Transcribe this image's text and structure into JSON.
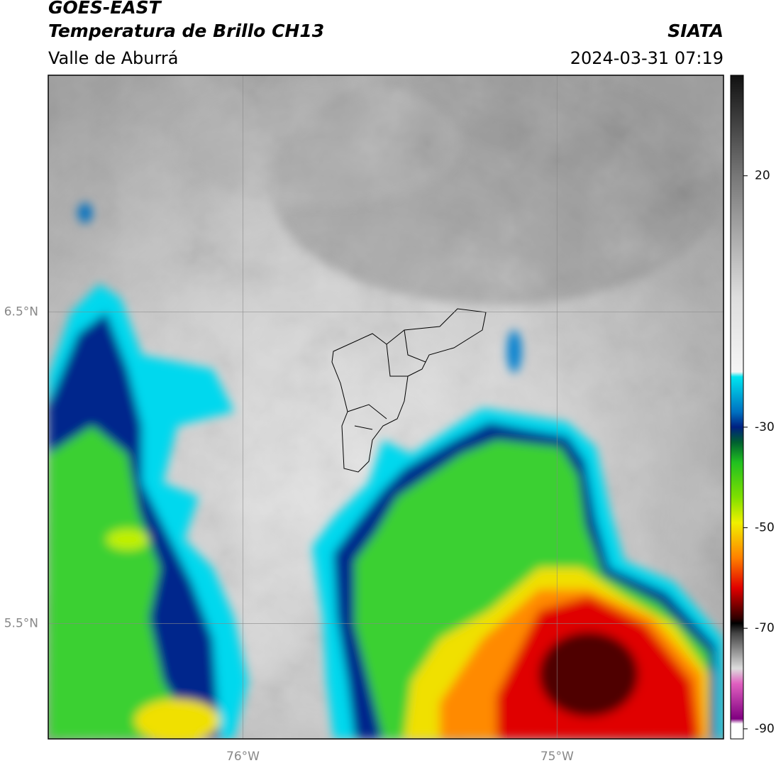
{
  "header": {
    "title": "GOES-EAST",
    "subtitle": "Temperatura de Brillo CH13",
    "region": "Valle de Aburrá",
    "source": "SIATA",
    "datetime": "2024-03-31 07:19"
  },
  "map": {
    "xlim": [
      -76.62,
      -74.47
    ],
    "ylim": [
      5.13,
      7.26
    ],
    "xticks": [
      {
        "value": -76,
        "label": "76°W"
      },
      {
        "value": -75,
        "label": "75°W"
      }
    ],
    "yticks": [
      {
        "value": 6.5,
        "label": "6.5°N"
      },
      {
        "value": 5.5,
        "label": "5.5°N"
      }
    ],
    "grid": true
  },
  "colorbar": {
    "clim": [
      -92,
      40
    ],
    "ticks": [
      20,
      -30,
      -50,
      -70,
      -90
    ],
    "colormap": [
      {
        "value": 40,
        "color": "#111111"
      },
      {
        "value": 20,
        "color": "#777777"
      },
      {
        "value": -4,
        "color": "#dddddd"
      },
      {
        "value": -19,
        "color": "#f5f5f5"
      },
      {
        "value": -20,
        "color": "#00e5f0"
      },
      {
        "value": -27,
        "color": "#0070c0"
      },
      {
        "value": -30,
        "color": "#002080"
      },
      {
        "value": -33,
        "color": "#006030"
      },
      {
        "value": -37,
        "color": "#20c020"
      },
      {
        "value": -44,
        "color": "#80e000"
      },
      {
        "value": -49,
        "color": "#f0f000"
      },
      {
        "value": -56,
        "color": "#ff8000"
      },
      {
        "value": -62,
        "color": "#e00000"
      },
      {
        "value": -68,
        "color": "#300000"
      },
      {
        "value": -69,
        "color": "#000000"
      },
      {
        "value": -71,
        "color": "#444444"
      },
      {
        "value": -78,
        "color": "#dddddd"
      },
      {
        "value": -81,
        "color": "#e060c0"
      },
      {
        "value": -88,
        "color": "#800080"
      },
      {
        "value": -89,
        "color": "#ffffff"
      }
    ]
  }
}
